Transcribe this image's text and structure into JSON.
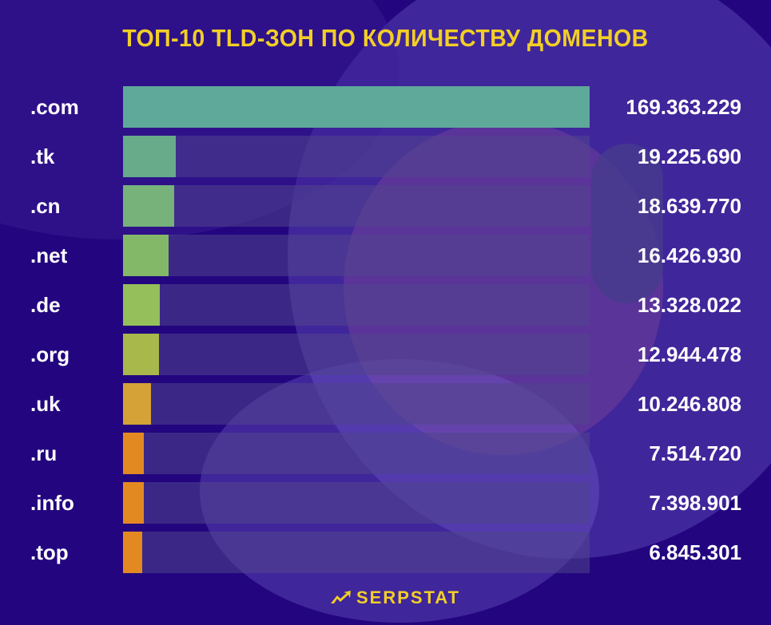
{
  "title": "ТОП-10 TLD-ЗОН ПО КОЛИЧЕСТВУ ДОМЕНОВ",
  "brand": "SERPSTAT",
  "colors": {
    "background": "#23067f",
    "title": "#f2cf26",
    "track": "#4b3f8c"
  },
  "rows": [
    {
      "label": ".com",
      "value": "169.363.229",
      "color": "#5fa99a"
    },
    {
      "label": ".tk",
      "value": "19.225.690",
      "color": "#67ab8a"
    },
    {
      "label": ".cn",
      "value": "18.639.770",
      "color": "#76b27a"
    },
    {
      "label": ".net",
      "value": "16.426.930",
      "color": "#83b869"
    },
    {
      "label": ".de",
      "value": "13.328.022",
      "color": "#94bf5a"
    },
    {
      "label": ".org",
      "value": "12.944.478",
      "color": "#a9b84a"
    },
    {
      "label": ".uk",
      "value": "10.246.808",
      "color": "#d4a236"
    },
    {
      "label": ".ru",
      "value": "7.514.720",
      "color": "#e38922"
    },
    {
      "label": ".info",
      "value": "7.398.901",
      "color": "#e38922"
    },
    {
      "label": ".top",
      "value": "6.845.301",
      "color": "#e38922"
    }
  ],
  "chart_data": {
    "type": "bar",
    "orientation": "horizontal",
    "title": "ТОП-10 TLD-ЗОН ПО КОЛИЧЕСТВУ ДОМЕНОВ",
    "categories": [
      ".com",
      ".tk",
      ".cn",
      ".net",
      ".de",
      ".org",
      ".uk",
      ".ru",
      ".info",
      ".top"
    ],
    "values": [
      169363229,
      19225690,
      18639770,
      16426930,
      13328022,
      12944478,
      10246808,
      7514720,
      7398901,
      6845301
    ],
    "xlabel": "",
    "ylabel": "",
    "grid": false,
    "legend": null,
    "source_brand": "SERPSTAT"
  }
}
